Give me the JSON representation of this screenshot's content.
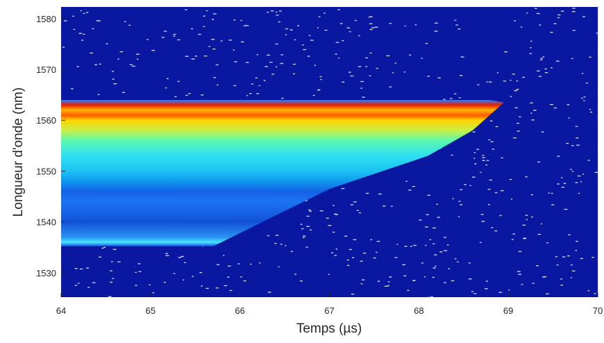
{
  "chart_data": {
    "type": "heatmap",
    "xlabel": "Temps (µs)",
    "ylabel": "Longueur d'onde (nm)",
    "xlim": [
      64,
      70
    ],
    "ylim": [
      1525.2,
      1582.3
    ],
    "xticks": [
      64,
      65,
      66,
      67,
      68,
      69,
      70
    ],
    "yticks": [
      1530,
      1540,
      1550,
      1560,
      1570,
      1580
    ],
    "background": "#0a17a0",
    "region": {
      "x": [
        64,
        68.8,
        68.95,
        68.6,
        68.1,
        67,
        65.7,
        64
      ],
      "y": [
        1564,
        1564,
        1563.5,
        1558,
        1553,
        1546.5,
        1535.2,
        1535.2
      ]
    },
    "gradient": {
      "values": [
        1564,
        1563,
        1562,
        1561,
        1560,
        1558,
        1556,
        1553,
        1550,
        1548,
        1546,
        1544,
        1540,
        1537,
        1536,
        1535.2
      ],
      "colors": [
        "#2a7bff",
        "#e81e00",
        "#ffb400",
        "#ff5a00",
        "#ffd400",
        "#c8f046",
        "#5cf8b0",
        "#2ee0f2",
        "#1cc2f2",
        "#1098ef",
        "#1462e6",
        "#1c74f2",
        "#1252d8",
        "#2a92f2",
        "#46e6ff",
        "#1f46e0"
      ]
    }
  }
}
